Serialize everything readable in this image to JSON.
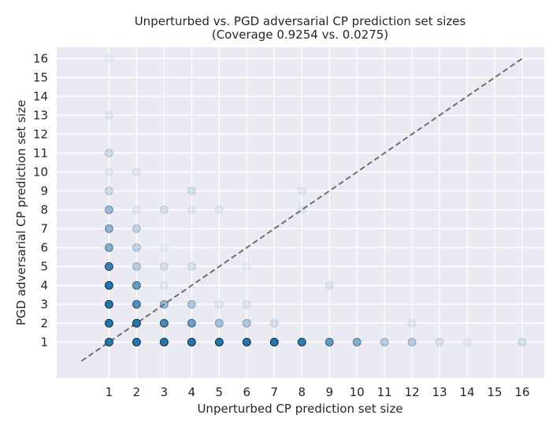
{
  "chart_data": {
    "type": "scatter",
    "title": "Unperturbed vs. PGD adversarial CP prediction set sizes",
    "subtitle": "(Coverage 0.9254 vs. 0.0275)",
    "xlabel": "Unperturbed CP prediction set size",
    "ylabel": "PGD adversarial CP prediction set size",
    "xlim": [
      -0.9,
      16.8
    ],
    "ylim": [
      -0.9,
      16.6
    ],
    "xticks": [
      "1",
      "2",
      "3",
      "4",
      "5",
      "6",
      "7",
      "8",
      "9",
      "10",
      "11",
      "12",
      "13",
      "14",
      "15",
      "16"
    ],
    "yticks": [
      "1",
      "2",
      "3",
      "4",
      "5",
      "6",
      "7",
      "8",
      "9",
      "10",
      "11",
      "12",
      "13",
      "14",
      "15",
      "16"
    ],
    "grid": true,
    "reference_line": {
      "from": [
        0,
        0
      ],
      "to": [
        16,
        16
      ],
      "style": "dashed",
      "color": "#6e6e6e"
    },
    "marker_color": "#1f77b4",
    "points": [
      {
        "x": 1,
        "y": 1,
        "alpha": 1.0
      },
      {
        "x": 1,
        "y": 2,
        "alpha": 1.0
      },
      {
        "x": 1,
        "y": 3,
        "alpha": 1.0
      },
      {
        "x": 1,
        "y": 4,
        "alpha": 1.0
      },
      {
        "x": 1,
        "y": 5,
        "alpha": 0.9
      },
      {
        "x": 1,
        "y": 6,
        "alpha": 0.55
      },
      {
        "x": 1,
        "y": 7,
        "alpha": 0.5
      },
      {
        "x": 1,
        "y": 8,
        "alpha": 0.45
      },
      {
        "x": 1,
        "y": 9,
        "alpha": 0.2
      },
      {
        "x": 1,
        "y": 10,
        "alpha": 0.08
      },
      {
        "x": 1,
        "y": 11,
        "alpha": 0.2
      },
      {
        "x": 1,
        "y": 13,
        "alpha": 0.08
      },
      {
        "x": 1,
        "y": 16,
        "alpha": 0.06
      },
      {
        "x": 2,
        "y": 1,
        "alpha": 1.0
      },
      {
        "x": 2,
        "y": 2,
        "alpha": 1.0
      },
      {
        "x": 2,
        "y": 3,
        "alpha": 0.8
      },
      {
        "x": 2,
        "y": 4,
        "alpha": 0.7
      },
      {
        "x": 2,
        "y": 5,
        "alpha": 0.3
      },
      {
        "x": 2,
        "y": 6,
        "alpha": 0.25
      },
      {
        "x": 2,
        "y": 7,
        "alpha": 0.25
      },
      {
        "x": 2,
        "y": 8,
        "alpha": 0.08
      },
      {
        "x": 2,
        "y": 10,
        "alpha": 0.08
      },
      {
        "x": 3,
        "y": 1,
        "alpha": 1.0
      },
      {
        "x": 3,
        "y": 2,
        "alpha": 0.85
      },
      {
        "x": 3,
        "y": 3,
        "alpha": 0.45
      },
      {
        "x": 3,
        "y": 4,
        "alpha": 0.08
      },
      {
        "x": 3,
        "y": 5,
        "alpha": 0.15
      },
      {
        "x": 3,
        "y": 6,
        "alpha": 0.06
      },
      {
        "x": 3,
        "y": 8,
        "alpha": 0.15
      },
      {
        "x": 4,
        "y": 1,
        "alpha": 1.0
      },
      {
        "x": 4,
        "y": 2,
        "alpha": 0.65
      },
      {
        "x": 4,
        "y": 3,
        "alpha": 0.35
      },
      {
        "x": 4,
        "y": 5,
        "alpha": 0.15
      },
      {
        "x": 4,
        "y": 8,
        "alpha": 0.08
      },
      {
        "x": 4,
        "y": 9,
        "alpha": 0.15
      },
      {
        "x": 5,
        "y": 1,
        "alpha": 1.0
      },
      {
        "x": 5,
        "y": 2,
        "alpha": 0.4
      },
      {
        "x": 5,
        "y": 3,
        "alpha": 0.1
      },
      {
        "x": 5,
        "y": 8,
        "alpha": 0.08
      },
      {
        "x": 6,
        "y": 1,
        "alpha": 1.0
      },
      {
        "x": 6,
        "y": 2,
        "alpha": 0.35
      },
      {
        "x": 6,
        "y": 3,
        "alpha": 0.1
      },
      {
        "x": 6,
        "y": 5,
        "alpha": 0.06
      },
      {
        "x": 7,
        "y": 1,
        "alpha": 1.0
      },
      {
        "x": 7,
        "y": 2,
        "alpha": 0.15
      },
      {
        "x": 8,
        "y": 1,
        "alpha": 0.95
      },
      {
        "x": 8,
        "y": 8,
        "alpha": 0.08
      },
      {
        "x": 8,
        "y": 9,
        "alpha": 0.08
      },
      {
        "x": 9,
        "y": 1,
        "alpha": 0.7
      },
      {
        "x": 9,
        "y": 4,
        "alpha": 0.1
      },
      {
        "x": 10,
        "y": 1,
        "alpha": 0.55
      },
      {
        "x": 11,
        "y": 1,
        "alpha": 0.3
      },
      {
        "x": 12,
        "y": 1,
        "alpha": 0.3
      },
      {
        "x": 12,
        "y": 2,
        "alpha": 0.08
      },
      {
        "x": 13,
        "y": 1,
        "alpha": 0.15
      },
      {
        "x": 14,
        "y": 1,
        "alpha": 0.08
      },
      {
        "x": 16,
        "y": 1,
        "alpha": 0.15
      }
    ]
  }
}
